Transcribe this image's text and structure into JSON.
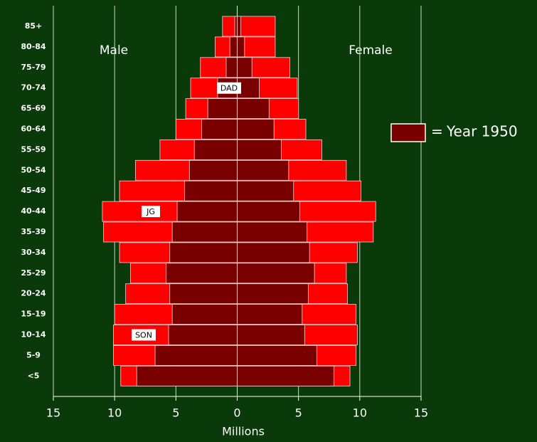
{
  "chart_data": {
    "type": "pyramid",
    "categories": [
      "85+",
      "80-84",
      "75-79",
      "70-74",
      "65-69",
      "60-64",
      "55-59",
      "50-54",
      "45-49",
      "40-44",
      "35-39",
      "30-34",
      "25-29",
      "20-24",
      "15-19",
      "10-14",
      "5-9",
      "<5"
    ],
    "series": [
      {
        "color": "#ff0000",
        "male": [
          1.2,
          1.8,
          3.0,
          3.8,
          4.2,
          5.0,
          6.3,
          8.3,
          9.6,
          11.0,
          10.9,
          9.6,
          8.7,
          9.1,
          10.0,
          10.1,
          10.1,
          9.5
        ],
        "female": [
          3.1,
          3.1,
          4.3,
          4.9,
          5.0,
          5.6,
          6.9,
          8.9,
          10.1,
          11.3,
          11.1,
          9.8,
          8.9,
          9.0,
          9.7,
          9.8,
          9.7,
          9.2
        ]
      },
      {
        "name": "Year 1950",
        "color": "#7a0000",
        "male": [
          0.2,
          0.6,
          0.9,
          1.6,
          2.4,
          2.9,
          3.5,
          3.9,
          4.3,
          4.9,
          5.3,
          5.5,
          5.8,
          5.5,
          5.3,
          5.6,
          6.7,
          8.2
        ],
        "female": [
          0.3,
          0.6,
          1.2,
          1.8,
          2.6,
          3.0,
          3.6,
          4.2,
          4.6,
          5.1,
          5.7,
          5.9,
          6.3,
          5.8,
          5.3,
          5.5,
          6.5,
          7.9
        ]
      }
    ],
    "left_label": "Male",
    "right_label": "Female",
    "xlabel": "Millions",
    "xlim": [
      -15,
      15
    ],
    "xticks": [
      {
        "value": -15,
        "label": "15"
      },
      {
        "value": -10,
        "label": "10"
      },
      {
        "value": -5,
        "label": "5"
      },
      0,
      5,
      10,
      15
    ],
    "grid": true,
    "annotations": [
      {
        "text": "DAD",
        "category": "70-74"
      },
      {
        "text": "JG",
        "category": "40-44"
      },
      {
        "text": "SON",
        "category": "10-14"
      }
    ]
  }
}
